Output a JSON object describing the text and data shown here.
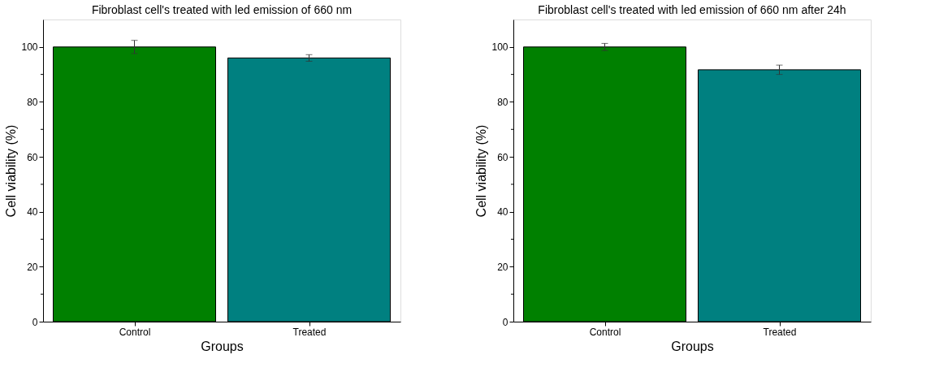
{
  "chart_data": [
    {
      "type": "bar",
      "title": "Fibroblast cell's treated with led emission of 660 nm",
      "xlabel": "Groups",
      "ylabel": "Cell viability (%)",
      "categories": [
        "Control",
        "Treated"
      ],
      "values": [
        100,
        96.0
      ],
      "colors": [
        "#008000",
        "#008080"
      ],
      "errors": [
        2.4,
        1.2
      ],
      "ylim": [
        0,
        110
      ],
      "yticks": [
        0,
        {
          "value": 10,
          "label": null
        },
        20,
        {
          "value": 30,
          "label": null
        },
        40,
        {
          "value": 50,
          "label": null
        },
        60,
        {
          "value": 70,
          "label": null
        },
        80,
        {
          "value": 90,
          "label": null
        },
        100
      ],
      "grid": false
    },
    {
      "type": "bar",
      "title": "Fibroblast cell's treated with led emission of 660 nm after 24h",
      "xlabel": "Groups",
      "ylabel": "Cell viability (%)",
      "categories": [
        "Control",
        "Treated"
      ],
      "values": [
        100,
        91.7
      ],
      "colors": [
        "#008000",
        "#008080"
      ],
      "errors": [
        1.3,
        1.7
      ],
      "ylim": [
        0,
        110
      ],
      "yticks": [
        0,
        {
          "value": 10,
          "label": null
        },
        20,
        {
          "value": 30,
          "label": null
        },
        40,
        {
          "value": 50,
          "label": null
        },
        60,
        {
          "value": 70,
          "label": null
        },
        80,
        {
          "value": 90,
          "label": null
        },
        100
      ],
      "grid": false
    }
  ]
}
